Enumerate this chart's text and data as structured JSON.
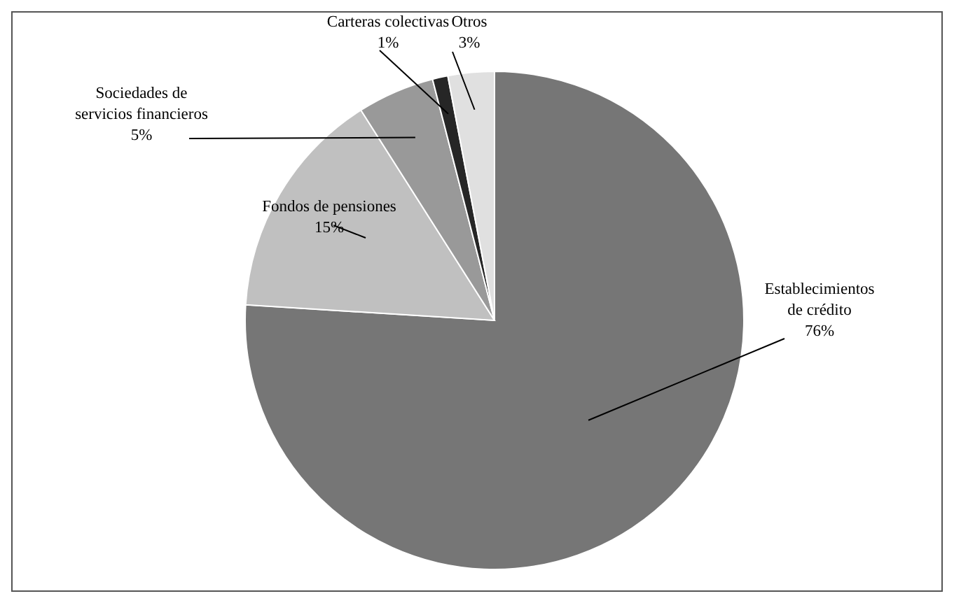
{
  "chart_data": {
    "type": "pie",
    "categories": [
      "Establecimientos de crédito",
      "Fondos de pensiones",
      "Sociedades de servicios financieros",
      "Carteras colectivas",
      "Otros"
    ],
    "values": [
      76,
      15,
      5,
      1,
      3
    ],
    "colors": [
      "#767676",
      "#c0c0c0",
      "#999999",
      "#262626",
      "#e0e0e0"
    ],
    "value_labels": [
      "76%",
      "15%",
      "5%",
      "1%",
      "3%"
    ],
    "legend": false
  }
}
